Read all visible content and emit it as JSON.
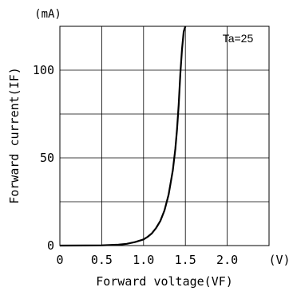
{
  "chart_data": {
    "type": "line",
    "title": "",
    "xlabel": "Forward voltage(VF)",
    "ylabel": "Forward current(IF)",
    "x_unit": "(V)",
    "y_unit": "(mA)",
    "xlim": [
      0,
      2.5
    ],
    "ylim": [
      0,
      125
    ],
    "x_ticks": [
      0,
      0.5,
      1.0,
      1.5,
      2.0
    ],
    "x_tick_labels": [
      "0",
      "0.5",
      "1.0",
      "1.5",
      "2.0"
    ],
    "y_ticks": [
      0,
      50,
      100
    ],
    "y_tick_labels": [
      "0",
      "50",
      "100"
    ],
    "grid": true,
    "annotation": "Ta=25",
    "series": [
      {
        "x": [
          0.0,
          0.3,
          0.5,
          0.7,
          0.8,
          0.9,
          1.0,
          1.05,
          1.1,
          1.15,
          1.2,
          1.25,
          1.3,
          1.35,
          1.38,
          1.4,
          1.42,
          1.44,
          1.46,
          1.48,
          1.5
        ],
        "y": [
          0.0,
          0.05,
          0.15,
          0.5,
          1.0,
          2.0,
          3.5,
          5.0,
          7.0,
          10.0,
          14.0,
          20.0,
          29.0,
          43.0,
          55.0,
          66.0,
          80.0,
          98.0,
          112.0,
          122.0,
          125.0
        ]
      }
    ]
  }
}
